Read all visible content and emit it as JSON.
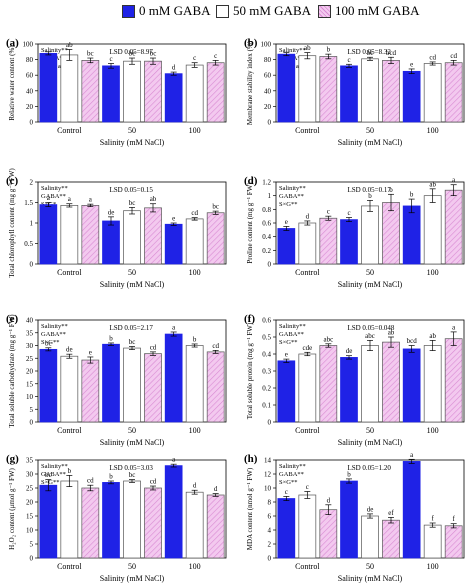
{
  "legend": {
    "items": [
      {
        "label": "0 mM GABA",
        "color": "#1f22e6",
        "style": "solid"
      },
      {
        "label": "50 mM GABA",
        "color": "#ffffff",
        "style": "open"
      },
      {
        "label": "100 mM GABA",
        "color": "#f3c9ef",
        "style": "hatched"
      }
    ]
  },
  "colors": {
    "gaba0": "#1f22e6",
    "gaba50": "#ffffff",
    "gaba100": "#f3c9ef",
    "hatch": "#d98ad3"
  },
  "chart_data": [
    {
      "panel": "(a)",
      "type": "bar",
      "ylabel": "Relative water content (%)",
      "xlabel": "Salinity (mM NaCl)",
      "categories": [
        "Control",
        "50",
        "100"
      ],
      "ylim": [
        0,
        100
      ],
      "yticks": [
        0,
        20,
        40,
        60,
        80,
        100
      ],
      "lsd": "LSD 0.05=8.97",
      "stats": [
        "Salinity**",
        "GABA**",
        "S×G* a"
      ],
      "series": [
        {
          "name": "0 mM GABA",
          "values": [
            88,
            72,
            62
          ],
          "errors": [
            2,
            3,
            2
          ],
          "letters": [
            "",
            "c",
            "d"
          ]
        },
        {
          "name": "50 mM GABA",
          "values": [
            86,
            78,
            73
          ],
          "errors": [
            7,
            4,
            3
          ],
          "letters": [
            "ab",
            "bc",
            "c"
          ]
        },
        {
          "name": "100 mM GABA",
          "values": [
            79,
            78,
            76
          ],
          "errors": [
            3,
            4,
            3
          ],
          "letters": [
            "bc",
            "bc",
            "c"
          ]
        }
      ]
    },
    {
      "panel": "(b)",
      "type": "bar",
      "ylabel": "Membrane stability index (%)",
      "xlabel": "Salinity (mM NaCl)",
      "categories": [
        "Control",
        "50",
        "100"
      ],
      "ylim": [
        0,
        100
      ],
      "yticks": [
        0,
        20,
        40,
        60,
        80,
        100
      ],
      "lsd": "LSD 0.05=8.32",
      "stats": [
        "Salinity**",
        "GABA**",
        "S×G* a"
      ],
      "series": [
        {
          "name": "0 mM GABA",
          "values": [
            87,
            72,
            65
          ],
          "errors": [
            2,
            2,
            3
          ],
          "letters": [
            "",
            "c",
            "e"
          ]
        },
        {
          "name": "50 mM GABA",
          "values": [
            85,
            81,
            75
          ],
          "errors": [
            4,
            2,
            2
          ],
          "letters": [
            "ab",
            "bc",
            "cd"
          ]
        },
        {
          "name": "100 mM GABA",
          "values": [
            84,
            79,
            76
          ],
          "errors": [
            3,
            4,
            3
          ],
          "letters": [
            "b",
            "bcd",
            "cd"
          ]
        }
      ]
    },
    {
      "panel": "(c)",
      "type": "bar",
      "ylabel": "Total chlorophyll content (mg g⁻¹ FW)",
      "xlabel": "Salinity (mM NaCl)",
      "categories": [
        "Control",
        "50",
        "100"
      ],
      "ylim": [
        0,
        2
      ],
      "yticks": [
        0,
        0.5,
        1,
        1.5,
        2
      ],
      "lsd": "LSD 0.05=0.15",
      "stats": [
        "Salinity**",
        "GABA**",
        "S×G*"
      ],
      "series": [
        {
          "name": "0 mM GABA",
          "values": [
            1.45,
            1.05,
            0.97
          ],
          "errors": [
            0.05,
            0.1,
            0.03
          ],
          "letters": [
            "a",
            "de",
            "e"
          ]
        },
        {
          "name": "50 mM GABA",
          "values": [
            1.43,
            1.3,
            1.1
          ],
          "errors": [
            0.04,
            0.08,
            0.03
          ],
          "letters": [
            "a",
            "bc",
            "cd"
          ]
        },
        {
          "name": "100 mM GABA",
          "values": [
            1.43,
            1.37,
            1.25
          ],
          "errors": [
            0.03,
            0.1,
            0.04
          ],
          "letters": [
            "a",
            "ab",
            "bc"
          ]
        }
      ]
    },
    {
      "panel": "(d)",
      "type": "bar",
      "ylabel": "Proline content (mg g⁻¹ FW)",
      "xlabel": "Salinity (mM NaCl)",
      "categories": [
        "Control",
        "50",
        "100"
      ],
      "ylim": [
        0,
        1.2
      ],
      "yticks": [
        0,
        0.2,
        0.4,
        0.6,
        0.8,
        1,
        1.2
      ],
      "lsd": "LSD 0.05=0.17",
      "stats": [
        "Salinity**",
        "GABA**",
        "S×G**"
      ],
      "series": [
        {
          "name": "0 mM GABA",
          "values": [
            0.52,
            0.65,
            0.85
          ],
          "errors": [
            0.03,
            0.03,
            0.1
          ],
          "letters": [
            "e",
            "c",
            "b"
          ]
        },
        {
          "name": "50 mM GABA",
          "values": [
            0.6,
            0.85,
            1.0
          ],
          "errors": [
            0.03,
            0.08,
            0.1
          ],
          "letters": [
            "d",
            "b",
            "ab"
          ]
        },
        {
          "name": "100 mM GABA",
          "values": [
            0.67,
            0.9,
            1.08
          ],
          "errors": [
            0.03,
            0.12,
            0.08
          ],
          "letters": [
            "c",
            "b",
            "a"
          ]
        }
      ]
    },
    {
      "panel": "(e)",
      "type": "bar",
      "ylabel": "Total soluble carbohydrate (mg g⁻¹ FW)",
      "xlabel": "Salinity (mM NaCl)",
      "categories": [
        "Control",
        "50",
        "100"
      ],
      "ylim": [
        0,
        40
      ],
      "yticks": [
        0,
        5,
        10,
        15,
        20,
        25,
        30,
        35,
        40
      ],
      "lsd": "LSD 0.05=2.17",
      "stats": [
        "Salinity**",
        "GABA**",
        "S×G**"
      ],
      "series": [
        {
          "name": "0 mM GABA",
          "values": [
            28.5,
            30.5,
            34.5
          ],
          "errors": [
            0.6,
            0.5,
            0.8
          ],
          "letters": [
            "bc",
            "b",
            "a"
          ]
        },
        {
          "name": "50 mM GABA",
          "values": [
            25.8,
            29,
            30
          ],
          "errors": [
            0.8,
            0.6,
            0.6
          ],
          "letters": [
            "de",
            "bc",
            "b"
          ]
        },
        {
          "name": "100 mM GABA",
          "values": [
            24.3,
            26.8,
            27.5
          ],
          "errors": [
            1.2,
            0.7,
            0.6
          ],
          "letters": [
            "e",
            "cd",
            "cd"
          ]
        }
      ]
    },
    {
      "panel": "(f)",
      "type": "bar",
      "ylabel": "Total soluble protein (mg g⁻¹ FW)",
      "xlabel": "Salinity (mM NaCl)",
      "categories": [
        "Control",
        "50",
        "100"
      ],
      "ylim": [
        0,
        0.6
      ],
      "yticks": [
        0,
        0.1,
        0.2,
        0.3,
        0.4,
        0.5,
        0.6
      ],
      "lsd": "LSD 0.05=0.048",
      "stats": [
        "Salinity**",
        "GABA**",
        "S×G**"
      ],
      "series": [
        {
          "name": "0 mM GABA",
          "values": [
            0.36,
            0.38,
            0.43
          ],
          "errors": [
            0.01,
            0.01,
            0.02
          ],
          "letters": [
            "e",
            "de",
            "bcd"
          ]
        },
        {
          "name": "50 mM GABA",
          "values": [
            0.4,
            0.45,
            0.45
          ],
          "errors": [
            0.01,
            0.03,
            0.03
          ],
          "letters": [
            "cde",
            "abc",
            "ab"
          ]
        },
        {
          "name": "100 mM GABA",
          "values": [
            0.45,
            0.47,
            0.49
          ],
          "errors": [
            0.01,
            0.03,
            0.04
          ],
          "letters": [
            "abc",
            "ab",
            "a"
          ]
        }
      ]
    },
    {
      "panel": "(g)",
      "type": "bar",
      "ylabel": "H₂O₂ content (μmol g⁻¹ FW)",
      "xlabel": "Salinity (mM NaCl)",
      "categories": [
        "Control",
        "50",
        "100"
      ],
      "ylim": [
        0,
        35
      ],
      "yticks": [
        0,
        5,
        10,
        15,
        20,
        25,
        30,
        35
      ],
      "lsd": "LSD 0.05=3.03",
      "stats": [
        "Salinity**",
        "GABA**",
        "S×G**"
      ],
      "series": [
        {
          "name": "0 mM GABA",
          "values": [
            26,
            27,
            33
          ],
          "errors": [
            2,
            0.5,
            0.5
          ],
          "letters": [
            "bc",
            "b",
            "a"
          ]
        },
        {
          "name": "50 mM GABA",
          "values": [
            27.5,
            27.5,
            23.5
          ],
          "errors": [
            2,
            0.5,
            0.7
          ],
          "letters": [
            "b",
            "bc",
            "d"
          ]
        },
        {
          "name": "100 mM GABA",
          "values": [
            25,
            25,
            22.5
          ],
          "errors": [
            1,
            0.7,
            0.5
          ],
          "letters": [
            "cd",
            "cd",
            "d"
          ]
        }
      ]
    },
    {
      "panel": "(h)",
      "type": "bar",
      "ylabel": "MDA content (nmol g⁻¹ FW)",
      "xlabel": "Salinity (mM NaCl)",
      "categories": [
        "Control",
        "50",
        "100"
      ],
      "ylim": [
        0,
        14
      ],
      "yticks": [
        0,
        2,
        4,
        6,
        8,
        10,
        12,
        14
      ],
      "lsd": "LSD 0.05=1.20",
      "stats": [
        "Salinity**",
        "GABA**",
        "S×G**"
      ],
      "series": [
        {
          "name": "0 mM GABA",
          "values": [
            8.5,
            11,
            13.8
          ],
          "errors": [
            0.3,
            0.3,
            0.3
          ],
          "letters": [
            "c",
            "b",
            "a"
          ]
        },
        {
          "name": "50 mM GABA",
          "values": [
            9,
            6,
            4.7
          ],
          "errors": [
            0.5,
            0.3,
            0.3
          ],
          "letters": [
            "c",
            "de",
            "f"
          ]
        },
        {
          "name": "100 mM GABA",
          "values": [
            6.9,
            5.4,
            4.6
          ],
          "errors": [
            0.7,
            0.4,
            0.3
          ],
          "letters": [
            "d",
            "ef",
            "f"
          ]
        }
      ]
    }
  ]
}
